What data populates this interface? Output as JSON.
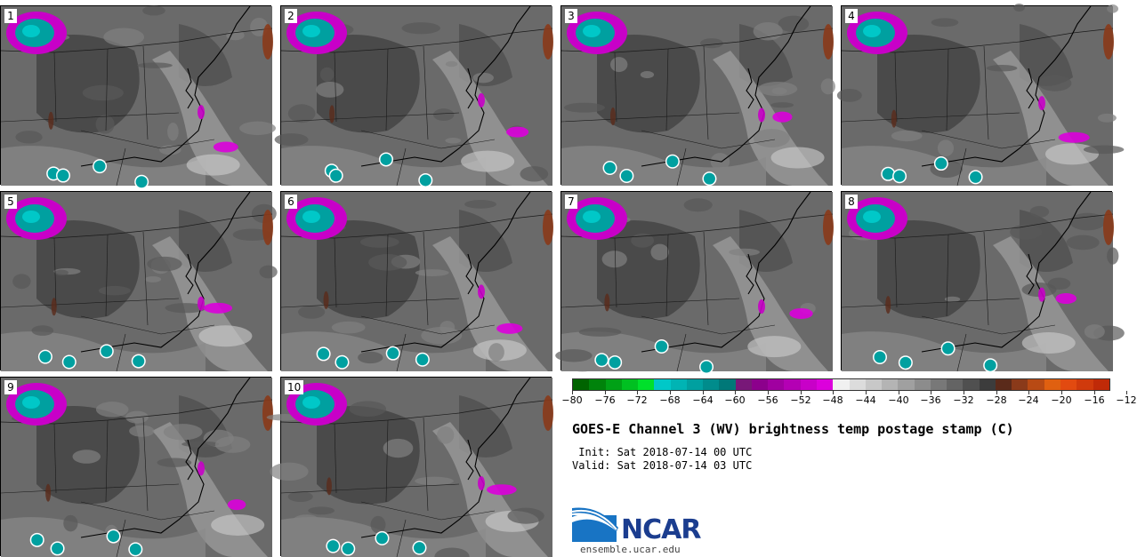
{
  "panels": [
    {
      "label": "1"
    },
    {
      "label": "2"
    },
    {
      "label": "3"
    },
    {
      "label": "4"
    },
    {
      "label": "5"
    },
    {
      "label": "6"
    },
    {
      "label": "7"
    },
    {
      "label": "8"
    },
    {
      "label": "9"
    },
    {
      "label": "10"
    }
  ],
  "colorbar": {
    "colors": [
      "#006400",
      "#00830b",
      "#00a116",
      "#00c021",
      "#00e02b",
      "#00c8c8",
      "#00b4b4",
      "#00a0a0",
      "#008c8c",
      "#007878",
      "#781878",
      "#8c008c",
      "#a000a0",
      "#b400b4",
      "#c800c8",
      "#dc00dc",
      "#f0f0f0",
      "#dcdcdc",
      "#c8c8c8",
      "#b4b4b4",
      "#a0a0a0",
      "#8c8c8c",
      "#787878",
      "#646464",
      "#505050",
      "#3c3c3c",
      "#5a2a1a",
      "#8a3a1a",
      "#b84a14",
      "#e06010",
      "#e24a10",
      "#d03a0c",
      "#c02a08"
    ],
    "tick_labels": [
      "−80",
      "−76",
      "−72",
      "−68",
      "−64",
      "−60",
      "−56",
      "−52",
      "−48",
      "−44",
      "−40",
      "−36",
      "−32",
      "−28",
      "−24",
      "−20",
      "−16",
      "−12"
    ]
  },
  "title": "GOES-E Channel 3 (WV) brightness temp postage stamp (C)",
  "init_line": " Init: Sat 2018-07-14 00 UTC",
  "valid_line": "Valid: Sat 2018-07-14 03 UTC",
  "logo": {
    "text": "NCAR",
    "url": "ensemble.ucar.edu"
  }
}
